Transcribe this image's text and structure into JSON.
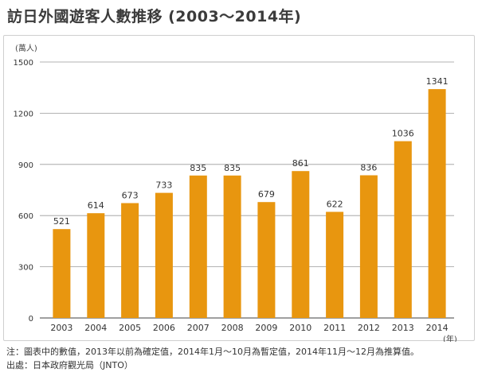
{
  "header": {
    "title": "訪日外國遊客人數推移 (2003～2014年)"
  },
  "chart_data": {
    "type": "bar",
    "ylabel": "(萬人)",
    "xlabel": "(年)",
    "ylim": [
      0,
      1500
    ],
    "yticks": [
      0,
      300,
      600,
      900,
      1200,
      1500
    ],
    "categories": [
      "2003",
      "2004",
      "2005",
      "2006",
      "2007",
      "2008",
      "2009",
      "2010",
      "2011",
      "2012",
      "2013",
      "2014"
    ],
    "values": [
      521,
      614,
      673,
      733,
      835,
      835,
      679,
      861,
      622,
      836,
      1036,
      1341
    ],
    "grid": true,
    "bar_color": "#e8960f"
  },
  "footer": {
    "note": "注：圖表中的數值，2013年以前為確定值，2014年1月～10月為暫定值，2014年11月～12月為推算值。",
    "source": "出處：日本政府觀光局（JNTO）"
  }
}
